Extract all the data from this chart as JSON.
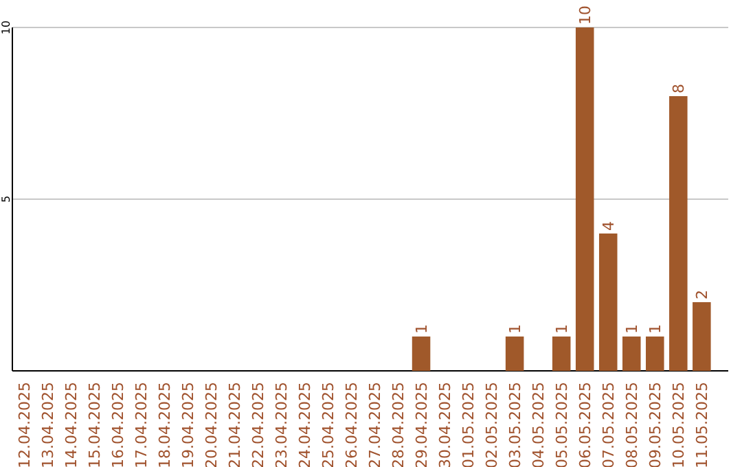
{
  "chart_data": {
    "type": "bar",
    "categories": [
      "12.04.2025",
      "13.04.2025",
      "14.04.2025",
      "15.04.2025",
      "16.04.2025",
      "17.04.2025",
      "18.04.2025",
      "19.04.2025",
      "20.04.2025",
      "21.04.2025",
      "22.04.2025",
      "23.04.2025",
      "24.04.2025",
      "25.04.2025",
      "26.04.2025",
      "27.04.2025",
      "28.04.2025",
      "29.04.2025",
      "30.04.2025",
      "01.05.2025",
      "02.05.2025",
      "03.05.2025",
      "04.05.2025",
      "05.05.2025",
      "06.05.2025",
      "07.05.2025",
      "08.05.2025",
      "09.05.2025",
      "10.05.2025",
      "11.05.2025"
    ],
    "values": [
      0,
      0,
      0,
      0,
      0,
      0,
      0,
      0,
      0,
      0,
      0,
      0,
      0,
      0,
      0,
      0,
      0,
      1,
      0,
      0,
      0,
      1,
      0,
      1,
      10,
      4,
      1,
      1,
      8,
      2
    ],
    "value_labels": [
      null,
      null,
      null,
      null,
      null,
      null,
      null,
      null,
      null,
      null,
      null,
      null,
      null,
      null,
      null,
      null,
      null,
      "1",
      null,
      null,
      null,
      "1",
      null,
      "1",
      "10",
      "4",
      "1",
      "1",
      "8",
      "2"
    ],
    "color": "#a0592a",
    "ylim": [
      0,
      10
    ],
    "yticks": [
      5,
      10
    ],
    "grid": "y"
  }
}
